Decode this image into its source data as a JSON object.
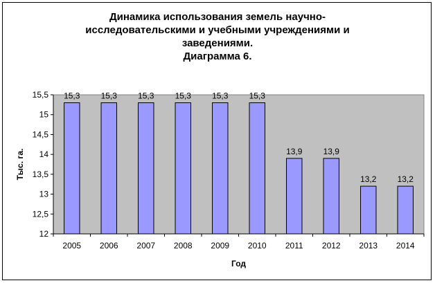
{
  "chart_data": {
    "type": "bar",
    "title_lines": [
      "Динамика использования земель научно-",
      "исследовательскими и учебными учреждениями и",
      "заведениями.",
      "Диаграмма 6."
    ],
    "categories": [
      "2005",
      "2006",
      "2007",
      "2008",
      "2009",
      "2010",
      "2011",
      "2012",
      "2013",
      "2014"
    ],
    "values": [
      15.3,
      15.3,
      15.3,
      15.3,
      15.3,
      15.3,
      13.9,
      13.9,
      13.2,
      13.2
    ],
    "value_labels": [
      "15,3",
      "15,3",
      "15,3",
      "15,3",
      "15,3",
      "15,3",
      "13,9",
      "13,9",
      "13,2",
      "13,2"
    ],
    "xlabel": "Год",
    "ylabel": "Тыс. га.",
    "ylim": [
      12,
      15.5
    ],
    "yticks": [
      12,
      12.5,
      13,
      13.5,
      14,
      14.5,
      15,
      15.5
    ],
    "ytick_labels": [
      "12",
      "12,5",
      "13",
      "13,5",
      "14",
      "14,5",
      "15",
      "15,5"
    ],
    "grid": false,
    "legend": "none",
    "colors": {
      "plot_background": "#c0c0c0",
      "bar_fill": "#9999ff",
      "bar_stroke": "#000000"
    }
  }
}
